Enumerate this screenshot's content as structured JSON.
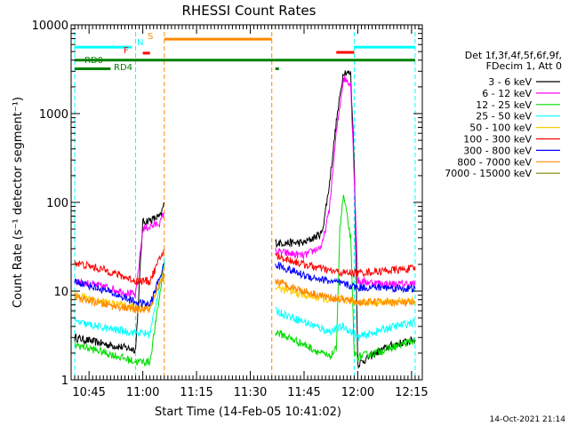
{
  "chart_data": {
    "type": "line",
    "title": "RHESSI Count Rates",
    "xlabel": "Start Time (14-Feb-05 10:41:02)",
    "ylabel": "Count Rate (s⁻¹ detector segment⁻¹)",
    "xlim": [
      "10:40",
      "12:18"
    ],
    "ylim": [
      1,
      10000
    ],
    "yscale": "log",
    "x_ticks": [
      "10:45",
      "11:00",
      "11:15",
      "11:30",
      "11:45",
      "12:00",
      "12:15"
    ],
    "y_ticks": [
      "1",
      "10",
      "100",
      "1000",
      "10000"
    ],
    "legend": {
      "placement": "right",
      "header": [
        "Det 1f,3f,4f,5f,6f,9f,",
        "FDecim 1, Att 0"
      ]
    },
    "series": [
      {
        "name": "3 - 6 keV",
        "color": "#000000",
        "segments": [
          [
            [
              "10:41",
              3.0
            ],
            [
              "10:50",
              2.5
            ],
            [
              "10:58",
              2.2
            ],
            [
              "11:00",
              60
            ],
            [
              "11:03",
              65
            ],
            [
              "11:05",
              70
            ],
            [
              "11:06",
              100
            ]
          ],
          [
            [
              "11:37",
              35
            ],
            [
              "11:45",
              35
            ],
            [
              "11:50",
              45
            ],
            [
              "11:52",
              150
            ],
            [
              "11:54",
              800
            ],
            [
              "11:56",
              3000
            ],
            [
              "11:58",
              2800
            ],
            [
              "11:59",
              300
            ],
            [
              "12:00",
              1.5
            ],
            [
              "12:05",
              2.0
            ],
            [
              "12:10",
              2.5
            ],
            [
              "12:16",
              2.8
            ]
          ]
        ]
      },
      {
        "name": "6 - 12 keV",
        "color": "#ff00ff",
        "segments": [
          [
            [
              "10:41",
              13
            ],
            [
              "10:50",
              11
            ],
            [
              "10:58",
              9
            ],
            [
              "11:00",
              50
            ],
            [
              "11:03",
              55
            ],
            [
              "11:05",
              60
            ],
            [
              "11:06",
              80
            ]
          ],
          [
            [
              "11:37",
              28
            ],
            [
              "11:45",
              25
            ],
            [
              "11:50",
              32
            ],
            [
              "11:52",
              80
            ],
            [
              "11:54",
              600
            ],
            [
              "11:56",
              2500
            ],
            [
              "11:58",
              2200
            ],
            [
              "11:59",
              200
            ],
            [
              "12:00",
              13
            ],
            [
              "12:08",
              12
            ],
            [
              "12:16",
              12
            ]
          ]
        ]
      },
      {
        "name": "12 - 25 keV",
        "color": "#00dd00",
        "segments": [
          [
            [
              "10:41",
              2.5
            ],
            [
              "10:50",
              2.0
            ],
            [
              "10:58",
              1.6
            ],
            [
              "11:02",
              1.6
            ],
            [
              "11:06",
              20
            ]
          ],
          [
            [
              "11:37",
              3.5
            ],
            [
              "11:45",
              2.5
            ],
            [
              "11:52",
              1.8
            ],
            [
              "11:54",
              2.2
            ],
            [
              "11:55",
              50
            ],
            [
              "11:56",
              120
            ],
            [
              "11:58",
              40
            ],
            [
              "11:59",
              2.0
            ],
            [
              "12:00",
              1.8
            ],
            [
              "12:08",
              2.2
            ],
            [
              "12:16",
              2.8
            ]
          ]
        ]
      },
      {
        "name": "25 - 50 keV",
        "color": "#00ffff",
        "segments": [
          [
            [
              "10:41",
              4.5
            ],
            [
              "10:50",
              3.8
            ],
            [
              "10:58",
              3.4
            ],
            [
              "11:02",
              3.3
            ],
            [
              "11:06",
              22
            ]
          ],
          [
            [
              "11:37",
              6.0
            ],
            [
              "11:45",
              4.5
            ],
            [
              "11:52",
              3.5
            ],
            [
              "11:56",
              4.0
            ],
            [
              "11:58",
              3.5
            ],
            [
              "12:00",
              3.0
            ],
            [
              "12:08",
              3.8
            ],
            [
              "12:16",
              4.5
            ]
          ]
        ]
      },
      {
        "name": "50 - 100 keV",
        "color": "#ffcc00",
        "segments": [
          [
            [
              "10:41",
              9
            ],
            [
              "10:50",
              7.5
            ],
            [
              "10:58",
              6.5
            ],
            [
              "11:02",
              6.5
            ],
            [
              "11:06",
              18
            ]
          ],
          [
            [
              "11:37",
              11
            ],
            [
              "11:45",
              9
            ],
            [
              "11:52",
              8
            ],
            [
              "11:56",
              8
            ],
            [
              "12:00",
              7.5
            ],
            [
              "12:08",
              7.5
            ],
            [
              "12:16",
              7.8
            ]
          ]
        ]
      },
      {
        "name": "100 - 300 keV",
        "color": "#ff0000",
        "segments": [
          [
            [
              "10:41",
              21
            ],
            [
              "10:50",
              17
            ],
            [
              "10:58",
              13
            ],
            [
              "11:02",
              13
            ],
            [
              "11:06",
              30
            ]
          ],
          [
            [
              "11:37",
              25
            ],
            [
              "11:45",
              20
            ],
            [
              "11:52",
              17
            ],
            [
              "11:56",
              16
            ],
            [
              "12:00",
              16
            ],
            [
              "12:08",
              17
            ],
            [
              "12:16",
              18
            ]
          ]
        ]
      },
      {
        "name": "300 - 800 keV",
        "color": "#0000ff",
        "segments": [
          [
            [
              "10:41",
              13
            ],
            [
              "10:50",
              10
            ],
            [
              "10:58",
              7.5
            ],
            [
              "11:02",
              7
            ],
            [
              "11:06",
              20
            ]
          ],
          [
            [
              "11:37",
              20
            ],
            [
              "11:45",
              15
            ],
            [
              "11:52",
              13
            ],
            [
              "11:56",
              12
            ],
            [
              "12:00",
              11
            ],
            [
              "12:08",
              11
            ],
            [
              "12:16",
              10.5
            ]
          ]
        ]
      },
      {
        "name": "800 - 7000 keV",
        "color": "#ff8800",
        "segments": [
          [
            [
              "10:41",
              8.5
            ],
            [
              "10:50",
              7
            ],
            [
              "10:58",
              6.2
            ],
            [
              "11:02",
              6.2
            ],
            [
              "11:06",
              15
            ]
          ],
          [
            [
              "11:37",
              13
            ],
            [
              "11:45",
              10
            ],
            [
              "11:52",
              8.5
            ],
            [
              "11:56",
              8
            ],
            [
              "12:00",
              7.5
            ],
            [
              "12:08",
              7.5
            ],
            [
              "12:16",
              7.3
            ]
          ]
        ]
      },
      {
        "name": "7000 - 15000 keV",
        "color": "#808000",
        "segments": []
      }
    ],
    "flags": [
      {
        "label": "",
        "color": "#00ffff",
        "segments": [
          [
            "10:41",
            "10:57"
          ],
          [
            "11:59",
            "12:16"
          ]
        ],
        "y": 5600
      },
      {
        "label": "S",
        "color": "#ff8800",
        "segments": [
          [
            "11:06",
            "11:36"
          ]
        ],
        "y": 6900
      },
      {
        "label": "N",
        "color": "#00ffff",
        "segments": [],
        "y": 4800
      },
      {
        "label": "F",
        "color": "#ff0000",
        "segments": [
          [
            "11:00",
            "11:02"
          ]
        ],
        "y": 4800
      },
      {
        "label": "RD0",
        "color": "#008000",
        "segments": [
          [
            "10:41",
            "11:37"
          ],
          [
            "11:37",
            "12:16"
          ]
        ],
        "y": 4000
      },
      {
        "label": "RD4",
        "color": "#008000",
        "segments": [
          [
            "10:41",
            "10:51"
          ],
          [
            "11:37",
            "11:38"
          ]
        ],
        "y": 3200
      },
      {
        "label": "",
        "color": "#ff0000",
        "segments": [
          [
            "11:54",
            "11:59"
          ]
        ],
        "y": 4900
      }
    ],
    "vlines": [
      {
        "x": "10:41",
        "color": "#00ffff"
      },
      {
        "x": "10:58",
        "color": "#00ffff"
      },
      {
        "x": "11:06",
        "color": "#ff8800"
      },
      {
        "x": "11:36",
        "color": "#ff8800"
      },
      {
        "x": "11:59",
        "color": "#00ffff"
      },
      {
        "x": "12:16",
        "color": "#00ffff"
      }
    ],
    "footer": "14-Oct-2021 21:14"
  }
}
